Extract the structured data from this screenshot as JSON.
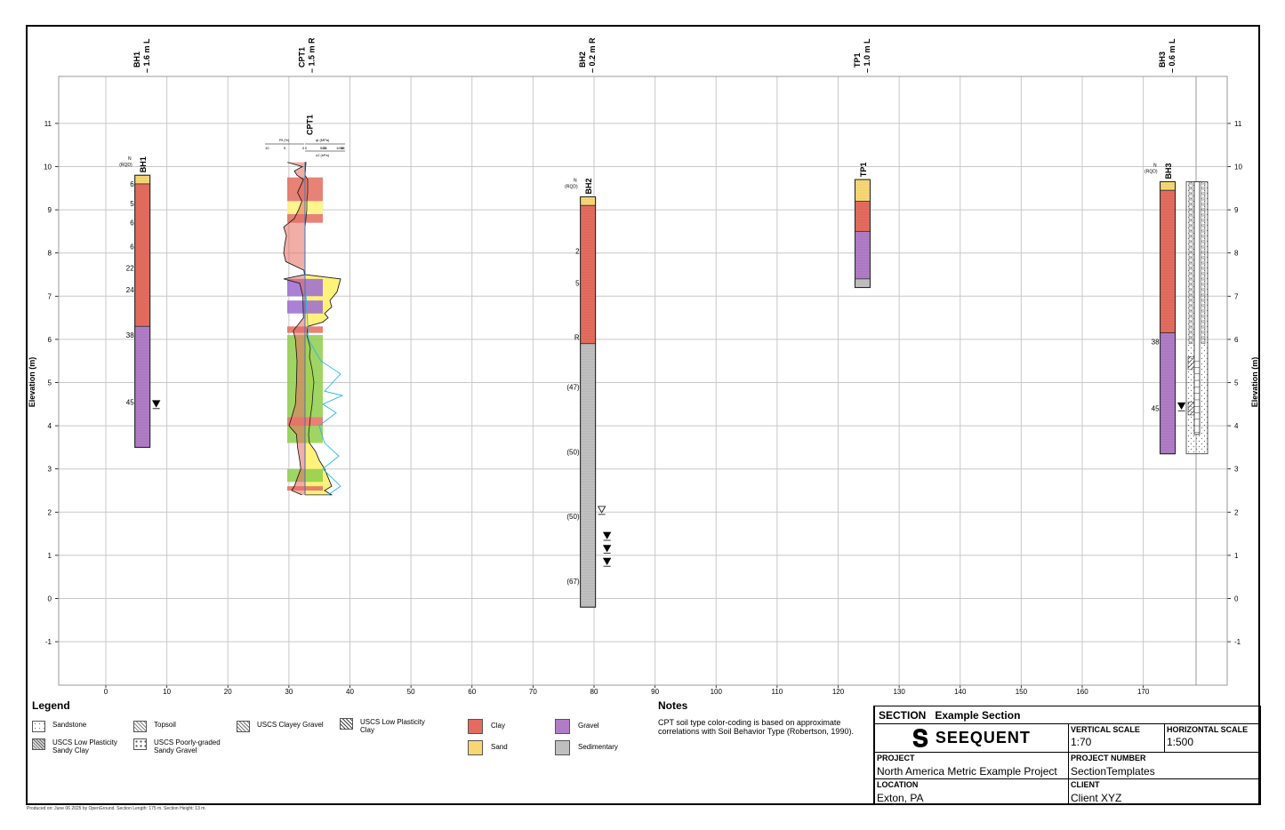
{
  "section": {
    "vertical_axis_label": "Elevation (m)",
    "y_ticks": [
      "11",
      "10",
      "9",
      "8",
      "7",
      "6",
      "5",
      "4",
      "3",
      "2",
      "1",
      "0",
      "-1"
    ],
    "x_ticks": [
      "0",
      "10",
      "20",
      "30",
      "40",
      "50",
      "60",
      "70",
      "80",
      "90",
      "100",
      "110",
      "120",
      "130",
      "140",
      "150",
      "160",
      "170"
    ],
    "x_range": [
      -8,
      186
    ],
    "y_range": [
      -2,
      12
    ]
  },
  "boreholes": [
    {
      "id": "BH1",
      "offset_label": "1.6 m L",
      "station": 6,
      "top": 9.8,
      "bottom": 3.5,
      "header": {
        "n": "N",
        "rqd": "(RQD)"
      },
      "layers": [
        {
          "top": 9.8,
          "bottom": 9.6,
          "material": "Sand"
        },
        {
          "top": 9.6,
          "bottom": 6.3,
          "material": "Clay"
        },
        {
          "top": 6.3,
          "bottom": 3.5,
          "material": "Gravel"
        }
      ],
      "n_values": [
        {
          "text": "6",
          "elev": 9.6
        },
        {
          "text": "5",
          "elev": 9.15
        },
        {
          "text": "6",
          "elev": 8.7
        },
        {
          "text": "6",
          "elev": 8.15
        },
        {
          "text": "22",
          "elev": 7.65
        },
        {
          "text": "24",
          "elev": 7.15
        },
        {
          "text": "38",
          "elev": 6.1
        },
        {
          "text": "45",
          "elev": 4.55
        }
      ],
      "water_levels": [
        4.5
      ]
    },
    {
      "id": "BH2",
      "offset_label": "0.2 m R",
      "station": 79,
      "top": 9.3,
      "bottom": -0.2,
      "header": {
        "n": "N",
        "rqd": "(RQD)"
      },
      "layers": [
        {
          "top": 9.3,
          "bottom": 9.1,
          "material": "Sand"
        },
        {
          "top": 9.1,
          "bottom": 5.9,
          "material": "Clay"
        },
        {
          "top": 5.9,
          "bottom": -0.2,
          "material": "Sedimentary"
        }
      ],
      "n_values": [
        {
          "text": "2",
          "elev": 8.05
        },
        {
          "text": "5",
          "elev": 7.3
        },
        {
          "text": "R",
          "elev": 6.05
        },
        {
          "text": "(47)",
          "elev": 4.9
        },
        {
          "text": "(50)",
          "elev": 3.4
        },
        {
          "text": "(50)",
          "elev": 1.9
        },
        {
          "text": "(67)",
          "elev": 0.4
        }
      ],
      "water_levels": [
        2.05,
        1.45,
        1.15,
        0.85
      ]
    },
    {
      "id": "TP1",
      "offset_label": "1.0 m L",
      "station": 124,
      "top": 9.7,
      "bottom": 7.2,
      "layers": [
        {
          "top": 9.7,
          "bottom": 9.2,
          "material": "Sand"
        },
        {
          "top": 9.2,
          "bottom": 8.5,
          "material": "Clay"
        },
        {
          "top": 8.5,
          "bottom": 7.4,
          "material": "Gravel"
        },
        {
          "top": 7.4,
          "bottom": 7.2,
          "material": "Sedimentary"
        }
      ],
      "n_values": [],
      "water_levels": []
    },
    {
      "id": "BH3",
      "offset_label": "0.6 m L",
      "station": 174,
      "top": 9.65,
      "bottom": 3.35,
      "header": {
        "n": "N",
        "rqd": "(RQD)"
      },
      "layers": [
        {
          "top": 9.65,
          "bottom": 9.45,
          "material": "Sand"
        },
        {
          "top": 9.45,
          "bottom": 6.15,
          "material": "Clay"
        },
        {
          "top": 6.15,
          "bottom": 3.35,
          "material": "Gravel"
        }
      ],
      "n_values": [
        {
          "text": "38",
          "elev": 5.95
        },
        {
          "text": "45",
          "elev": 4.4
        }
      ],
      "water_levels": [
        4.45
      ]
    }
  ],
  "cpt": {
    "id": "CPT1",
    "offset_label": "1.5 m R",
    "station": 33,
    "top": 10.1,
    "bottom": 2.4,
    "scale_labels": {
      "rf": "Rf (%)",
      "qt": "qt (MPa)",
      "u2": "u2 (kPa)",
      "left_ticks": [
        "10",
        "5",
        "0"
      ],
      "right_ticks": [
        "0",
        "25",
        "50"
      ],
      "u2_ticks": [
        "500",
        "1000"
      ]
    }
  },
  "legend": {
    "title": "Legend",
    "items": [
      {
        "label": "Sandstone",
        "pattern": "sandstone"
      },
      {
        "label": "Topsoil",
        "pattern": "topsoil"
      },
      {
        "label": "USCS Clayey Gravel",
        "pattern": "clayey-gravel"
      },
      {
        "label": "USCS Low Plasticity Clay",
        "pattern": "lp-clay"
      },
      {
        "label": "USCS Low Plasticity Sandy Clay",
        "pattern": "lp-sandy-clay"
      },
      {
        "label": "USCS Poorly-graded Sandy Gravel",
        "pattern": "pg-sandy-gravel"
      },
      {
        "label": "Clay",
        "color": "#e36c5e"
      },
      {
        "label": "Gravel",
        "color": "#b07cc6"
      },
      {
        "label": "Sand",
        "color": "#f7d774"
      },
      {
        "label": "Sedimentary",
        "color": "#bfbfbf"
      }
    ]
  },
  "materials": {
    "Clay": "#e36c5e",
    "Sand": "#f7d774",
    "Gravel": "#b07cc6",
    "Sedimentary": "#bfbfbf"
  },
  "notes": {
    "title": "Notes",
    "text": "CPT soil type color-coding is based on approximate correlations with Soil Behavior Type (Robertson, 1990)."
  },
  "title_block": {
    "section_label": "SECTION",
    "section_name": "Example Section",
    "logo_text": "SEEQUENT",
    "vertical_scale_label": "VERTICAL SCALE",
    "vertical_scale": "1:70",
    "horizontal_scale_label": "HORIZONTAL SCALE",
    "horizontal_scale": "1:500",
    "project_label": "PROJECT",
    "project": "North America Metric Example Project",
    "project_number_label": "PROJECT NUMBER",
    "project_number": "SectionTemplates",
    "location_label": "LOCATION",
    "location": "Exton, PA",
    "client_label": "CLIENT",
    "client": "Client XYZ"
  },
  "footer": "Produced on: June 06 2025 by OpenGround. Section Length: 175 m. Section Height: 13 m."
}
